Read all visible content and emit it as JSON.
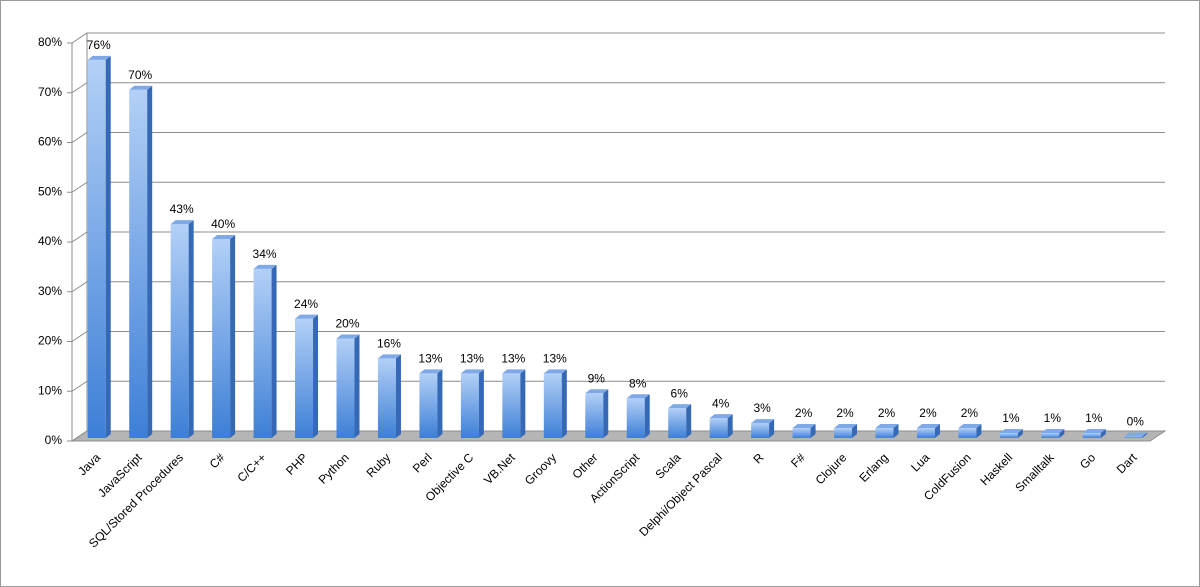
{
  "chart_data": {
    "type": "bar3d",
    "categories": [
      "Java",
      "JavaScript",
      "SQL/Stored Procedures",
      "C#",
      "C/C++",
      "PHP",
      "Python",
      "Ruby",
      "Perl",
      "Objective C",
      "VB.Net",
      "Groovy",
      "Other",
      "ActionScript",
      "Scala",
      "Delphi/Object Pascal",
      "R",
      "F#",
      "Clojure",
      "Erlang",
      "Lua",
      "ColdFusion",
      "Haskell",
      "Smalltalk",
      "Go",
      "Dart"
    ],
    "values": [
      76,
      70,
      43,
      40,
      34,
      24,
      20,
      16,
      13,
      13,
      13,
      13,
      9,
      8,
      6,
      4,
      3,
      2,
      2,
      2,
      2,
      2,
      1,
      1,
      1,
      0.3
    ],
    "value_labels": [
      "76%",
      "70%",
      "43%",
      "40%",
      "34%",
      "24%",
      "20%",
      "16%",
      "13%",
      "13%",
      "13%",
      "13%",
      "9%",
      "8%",
      "6%",
      "4%",
      "3%",
      "2%",
      "2%",
      "2%",
      "2%",
      "2%",
      "1%",
      "1%",
      "1%",
      "0%"
    ],
    "color": "#4f8ee0",
    "ylim": [
      0,
      80
    ],
    "yticks": [
      {
        "value": 0,
        "label": "0%"
      },
      {
        "value": 10,
        "label": "10%"
      },
      {
        "value": 20,
        "label": "20%"
      },
      {
        "value": 30,
        "label": "30%"
      },
      {
        "value": 40,
        "label": "40%"
      },
      {
        "value": 50,
        "label": "50%"
      },
      {
        "value": 60,
        "label": "60%"
      },
      {
        "value": 70,
        "label": "70%"
      },
      {
        "value": 80,
        "label": "80%"
      }
    ],
    "grid": true
  }
}
